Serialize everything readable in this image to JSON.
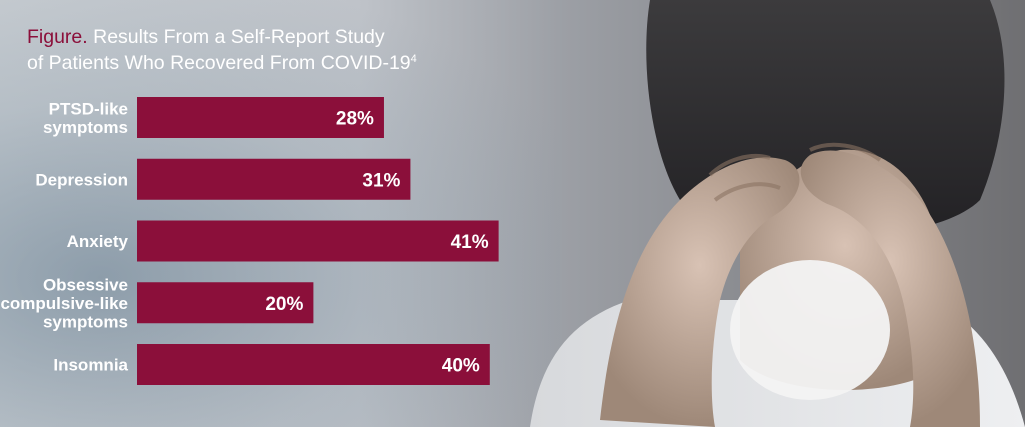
{
  "title": {
    "figure_label": "Figure.",
    "line1": "Results From a Self-Report Study",
    "line2": "of Patients Who Recovered From COVID-19",
    "superscript": "4"
  },
  "colors": {
    "bar": "#8b0f3a",
    "accent": "#8b0f3a",
    "text": "#ffffff"
  },
  "chart_data": {
    "type": "bar",
    "orientation": "horizontal",
    "categories": [
      [
        "PTSD-like",
        "symptoms"
      ],
      [
        "Depression"
      ],
      [
        "Anxiety"
      ],
      [
        "Obsessive",
        "compulsive-like",
        "symptoms"
      ],
      [
        "Insomnia"
      ]
    ],
    "values": [
      28,
      31,
      41,
      20,
      40
    ],
    "value_labels": [
      "28%",
      "31%",
      "41%",
      "20%",
      "40%"
    ],
    "unit": "%",
    "grid": false,
    "legend": "none"
  }
}
